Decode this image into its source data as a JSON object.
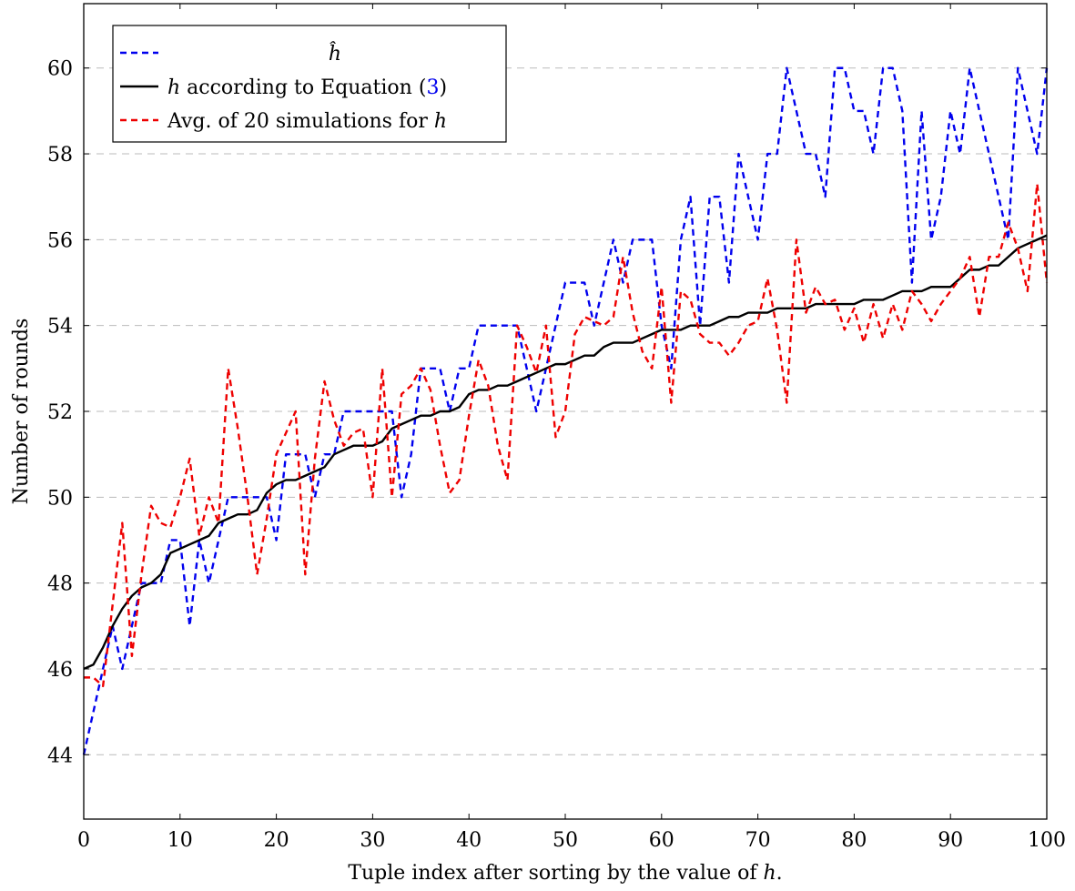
{
  "chart_data": {
    "type": "line",
    "xlabel_main": "Tuple index after sorting by the value of ",
    "xlabel_var": "h",
    "xlabel_end": ".",
    "ylabel": "Number of rounds",
    "xlim": [
      0,
      100
    ],
    "ylim": [
      42.5,
      61.5
    ],
    "xticks": [
      "0",
      "10",
      "20",
      "30",
      "40",
      "50",
      "60",
      "70",
      "80",
      "90",
      "100"
    ],
    "yticks": [
      "44",
      "46",
      "48",
      "50",
      "52",
      "54",
      "56",
      "58",
      "60"
    ],
    "grid": "horizontal-dashed",
    "legend_position": "top-left",
    "legend": {
      "hhat": "ĥ",
      "eq_var": "h",
      "eq_text": " according to Equation (",
      "eq_ref": "3",
      "eq_close": ")",
      "sim_text": "Avg. of 20 simulations for ",
      "sim_var": "h"
    },
    "colors": {
      "hhat": "#0000ee",
      "equation": "#000000",
      "simulation": "#ee0000",
      "grid": "#bbbbbb",
      "ref": "#0000ee"
    },
    "series": [
      {
        "key": "hhat",
        "style": "dashed",
        "x": [
          0,
          1,
          2,
          3,
          4,
          5,
          6,
          7,
          8,
          9,
          10,
          11,
          12,
          13,
          14,
          15,
          16,
          17,
          18,
          19,
          20,
          21,
          22,
          23,
          24,
          25,
          26,
          27,
          28,
          29,
          30,
          31,
          32,
          33,
          34,
          35,
          36,
          37,
          38,
          39,
          40,
          41,
          42,
          43,
          44,
          45,
          46,
          47,
          48,
          49,
          50,
          51,
          52,
          53,
          54,
          55,
          56,
          57,
          58,
          59,
          60,
          61,
          62,
          63,
          64,
          65,
          66,
          67,
          68,
          69,
          70,
          71,
          72,
          73,
          74,
          75,
          76,
          77,
          78,
          79,
          80,
          81,
          82,
          83,
          84,
          85,
          86,
          87,
          88,
          89,
          90,
          91,
          92,
          93,
          94,
          95,
          96,
          97,
          98,
          99,
          100
        ],
        "y": [
          44,
          45,
          46,
          47,
          46,
          47,
          48,
          48,
          48,
          49,
          49,
          47,
          49,
          48,
          49,
          50,
          50,
          50,
          50,
          50,
          49,
          51,
          51,
          51,
          50,
          51,
          51,
          52,
          52,
          52,
          52,
          52,
          52,
          50,
          51,
          53,
          53,
          53,
          52,
          53,
          53,
          54,
          54,
          54,
          54,
          54,
          53,
          52,
          53,
          54,
          55,
          55,
          55,
          54,
          55,
          56,
          55,
          56,
          56,
          56,
          54,
          53,
          56,
          57,
          54,
          57,
          57,
          55,
          58,
          57,
          56,
          58,
          58,
          60,
          59,
          58,
          58,
          57,
          60,
          60,
          59,
          59,
          58,
          60,
          60,
          59,
          55,
          59,
          56,
          57,
          59,
          58,
          60,
          59,
          58,
          57,
          56,
          60,
          59,
          58,
          60
        ]
      },
      {
        "key": "equation",
        "style": "solid",
        "x": [
          0,
          1,
          2,
          3,
          4,
          5,
          6,
          7,
          8,
          9,
          10,
          11,
          12,
          13,
          14,
          15,
          16,
          17,
          18,
          19,
          20,
          21,
          22,
          23,
          24,
          25,
          26,
          27,
          28,
          29,
          30,
          31,
          32,
          33,
          34,
          35,
          36,
          37,
          38,
          39,
          40,
          41,
          42,
          43,
          44,
          45,
          46,
          47,
          48,
          49,
          50,
          51,
          52,
          53,
          54,
          55,
          56,
          57,
          58,
          59,
          60,
          61,
          62,
          63,
          64,
          65,
          66,
          67,
          68,
          69,
          70,
          71,
          72,
          73,
          74,
          75,
          76,
          77,
          78,
          79,
          80,
          81,
          82,
          83,
          84,
          85,
          86,
          87,
          88,
          89,
          90,
          91,
          92,
          93,
          94,
          95,
          96,
          97,
          98,
          99,
          100
        ],
        "y": [
          46.0,
          46.1,
          46.5,
          47.0,
          47.4,
          47.7,
          47.9,
          48.0,
          48.2,
          48.7,
          48.8,
          48.9,
          49.0,
          49.1,
          49.4,
          49.5,
          49.6,
          49.6,
          49.7,
          50.1,
          50.3,
          50.4,
          50.4,
          50.5,
          50.6,
          50.7,
          51.0,
          51.1,
          51.2,
          51.2,
          51.2,
          51.3,
          51.6,
          51.7,
          51.8,
          51.9,
          51.9,
          52.0,
          52.0,
          52.1,
          52.4,
          52.5,
          52.5,
          52.6,
          52.6,
          52.7,
          52.8,
          52.9,
          53.0,
          53.1,
          53.1,
          53.2,
          53.3,
          53.3,
          53.5,
          53.6,
          53.6,
          53.6,
          53.7,
          53.8,
          53.9,
          53.9,
          53.9,
          54.0,
          54.0,
          54.0,
          54.1,
          54.2,
          54.2,
          54.3,
          54.3,
          54.3,
          54.4,
          54.4,
          54.4,
          54.4,
          54.5,
          54.5,
          54.5,
          54.5,
          54.5,
          54.6,
          54.6,
          54.6,
          54.7,
          54.8,
          54.8,
          54.8,
          54.9,
          54.9,
          54.9,
          55.1,
          55.3,
          55.3,
          55.4,
          55.4,
          55.6,
          55.8,
          55.9,
          56.0,
          56.1
        ]
      },
      {
        "key": "simulation",
        "style": "dashed",
        "x": [
          0,
          1,
          2,
          3,
          4,
          5,
          6,
          7,
          8,
          9,
          10,
          11,
          12,
          13,
          14,
          15,
          16,
          17,
          18,
          19,
          20,
          21,
          22,
          23,
          24,
          25,
          26,
          27,
          28,
          29,
          30,
          31,
          32,
          33,
          34,
          35,
          36,
          37,
          38,
          39,
          40,
          41,
          42,
          43,
          44,
          45,
          46,
          47,
          48,
          49,
          50,
          51,
          52,
          53,
          54,
          55,
          56,
          57,
          58,
          59,
          60,
          61,
          62,
          63,
          64,
          65,
          66,
          67,
          68,
          69,
          70,
          71,
          72,
          73,
          74,
          75,
          76,
          77,
          78,
          79,
          80,
          81,
          82,
          83,
          84,
          85,
          86,
          87,
          88,
          89,
          90,
          91,
          92,
          93,
          94,
          95,
          96,
          97,
          98,
          99,
          100
        ],
        "y": [
          45.8,
          45.8,
          45.6,
          47.5,
          49.4,
          46.3,
          48.2,
          49.8,
          49.4,
          49.3,
          50.0,
          50.9,
          49.1,
          50.0,
          49.4,
          53.0,
          51.6,
          50.0,
          48.2,
          49.5,
          51.0,
          51.5,
          52.0,
          48.2,
          50.9,
          52.7,
          51.8,
          51.2,
          51.5,
          51.6,
          50.0,
          53.0,
          50.0,
          52.4,
          52.6,
          53.0,
          52.5,
          51.2,
          50.1,
          50.4,
          51.9,
          53.2,
          52.6,
          51.2,
          50.4,
          54.0,
          53.5,
          52.9,
          54.0,
          51.4,
          52.0,
          53.8,
          54.2,
          54.1,
          54.0,
          54.2,
          55.6,
          54.3,
          53.4,
          53.0,
          54.9,
          52.2,
          54.8,
          54.6,
          53.8,
          53.6,
          53.6,
          53.3,
          53.6,
          54.0,
          54.1,
          55.1,
          53.9,
          52.2,
          56.0,
          54.3,
          54.9,
          54.5,
          54.6,
          53.9,
          54.4,
          53.6,
          54.5,
          53.7,
          54.5,
          53.9,
          54.8,
          54.5,
          54.1,
          54.5,
          54.8,
          55.1,
          55.6,
          54.2,
          55.6,
          55.6,
          56.4,
          55.8,
          54.8,
          57.3,
          55.0
        ]
      }
    ]
  }
}
